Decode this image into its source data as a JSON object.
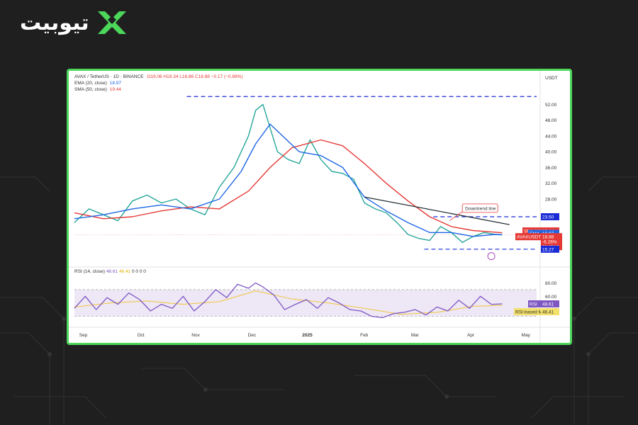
{
  "brand": {
    "name": "تیوبیت",
    "accent": "#4cd65a",
    "logo_icon": "x-logo-icon"
  },
  "chart_header": {
    "symbol": "AVAX / TetherUS · 1D · BINANCE",
    "ohlc": "O19.06 H19.34 L18.86 C18.88 −0.17 (−0.89%)",
    "ema_label": "EMA (20, close)",
    "ema_value": "18.97",
    "sma_label": "SMA (50, close)",
    "sma_value": "19.44",
    "rsi_label": "RSI (14, close)",
    "rsi_value": "48.61",
    "rsi_ma_value": "46.41",
    "rsi_extra": "0 0 0 0",
    "currency": "USDT",
    "annotation": "Downtrend line"
  },
  "price_tags": {
    "top_level": "23.50",
    "sma_tag": "SMA:MA",
    "sma_val": "19.44",
    "ema_tag": "EMA",
    "ema_val": "18.97",
    "pair_tag": "AVAXUSDT",
    "pair_val": "18.88",
    "pair_change": "-6.26%",
    "pair_time": "08:17:10",
    "bottom_level": "15.27",
    "rsi_tag": "RSI",
    "rsi_val": "48.61",
    "rsi_ma_tag": "RSI-based MA",
    "rsi_ma_val": "46.41"
  },
  "chart_data": {
    "type": "line",
    "title": "AVAX / TetherUS · 1D · BINANCE",
    "xlabel": "",
    "ylabel": "USDT",
    "ylim": [
      12,
      58
    ],
    "y_ticks": [
      "52.00",
      "48.00",
      "44.00",
      "40.00",
      "36.00",
      "32.00",
      "28.00"
    ],
    "x_ticks": [
      "Sep",
      "Oct",
      "Nov",
      "Dec",
      "2025",
      "Feb",
      "Mar",
      "Apr",
      "May"
    ],
    "x_tick_index": [
      5,
      37,
      67,
      98,
      128,
      160,
      188,
      219,
      249
    ],
    "price_series": {
      "name": "AVAXUSDT",
      "x": [
        0,
        8,
        16,
        24,
        32,
        40,
        48,
        56,
        64,
        72,
        80,
        88,
        96,
        100,
        104,
        108,
        112,
        118,
        124,
        130,
        136,
        142,
        148,
        154,
        160,
        166,
        172,
        178,
        184,
        190,
        196,
        202,
        208,
        214,
        220,
        226,
        232,
        236
      ],
      "values": [
        22.0,
        25.5,
        24.0,
        22.5,
        27.5,
        29.0,
        27.0,
        28.0,
        25.5,
        24.0,
        31.0,
        36.0,
        44.0,
        50.5,
        52.0,
        46.0,
        40.0,
        38.0,
        37.0,
        43.0,
        38.0,
        35.0,
        34.5,
        33.0,
        27.0,
        25.5,
        24.5,
        22.0,
        19.0,
        18.0,
        17.5,
        21.0,
        19.5,
        17.0,
        18.5,
        19.5,
        19.0,
        18.88
      ]
    },
    "ema": {
      "name": "EMA (20, close)",
      "x": [
        0,
        16,
        32,
        48,
        64,
        80,
        92,
        100,
        108,
        116,
        124,
        136,
        148,
        160,
        172,
        184,
        196,
        208,
        220,
        232,
        236
      ],
      "values": [
        23.0,
        24.0,
        25.5,
        26.5,
        25.5,
        28.0,
        35.0,
        42.0,
        47.0,
        43.5,
        40.0,
        39.0,
        36.0,
        28.5,
        25.0,
        22.0,
        19.5,
        19.5,
        18.5,
        19.0,
        18.97
      ]
    },
    "sma": {
      "name": "SMA (50, close)",
      "x": [
        0,
        16,
        32,
        48,
        64,
        80,
        96,
        108,
        120,
        136,
        148,
        160,
        172,
        184,
        196,
        208,
        220,
        236
      ],
      "values": [
        24.5,
        23.0,
        23.5,
        25.0,
        26.0,
        25.5,
        30.0,
        36.0,
        41.0,
        43.0,
        41.5,
        37.0,
        32.0,
        27.5,
        23.5,
        21.0,
        20.0,
        19.44
      ]
    },
    "downtrend_line": {
      "x": [
        160,
        240
      ],
      "values": [
        28.5,
        21.5
      ]
    },
    "resistance_level": 23.5,
    "support_level": 15.27,
    "ath_dashed_level": 54.0,
    "rsi": {
      "ylim": [
        20,
        90
      ],
      "ticks": [
        "80.00",
        "60.00",
        "40.00"
      ],
      "overbought": 70,
      "oversold": 30,
      "x": [
        0,
        6,
        12,
        18,
        24,
        30,
        36,
        42,
        48,
        54,
        60,
        66,
        72,
        78,
        84,
        90,
        96,
        100,
        104,
        110,
        116,
        122,
        128,
        134,
        140,
        146,
        152,
        158,
        164,
        170,
        176,
        182,
        188,
        194,
        200,
        206,
        212,
        218,
        224,
        230,
        236
      ],
      "values": [
        42,
        60,
        40,
        58,
        48,
        65,
        55,
        38,
        48,
        42,
        60,
        38,
        52,
        70,
        58,
        78,
        72,
        80,
        74,
        62,
        40,
        48,
        55,
        42,
        58,
        50,
        40,
        38,
        30,
        28,
        34,
        36,
        40,
        32,
        44,
        38,
        54,
        42,
        60,
        48,
        48.61
      ]
    },
    "rsi_ma": {
      "x": [
        0,
        20,
        40,
        60,
        80,
        100,
        120,
        140,
        160,
        180,
        200,
        220,
        236
      ],
      "values": [
        44,
        50,
        53,
        48,
        52,
        68,
        56,
        50,
        42,
        33,
        36,
        45,
        46.41
      ]
    }
  }
}
